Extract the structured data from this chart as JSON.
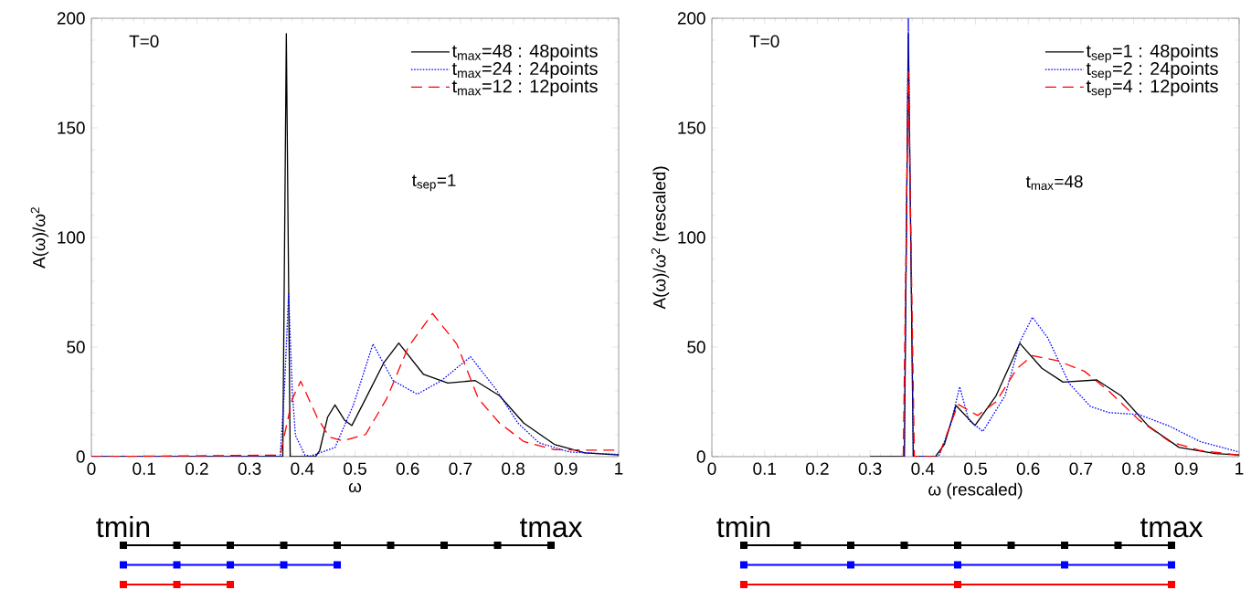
{
  "chart_data": [
    {
      "type": "line",
      "xlabel": "ω",
      "ylabel": "A(ω)/ω$^{2}$",
      "xlim": [
        0,
        1
      ],
      "ylim": [
        0,
        200
      ],
      "xticks": [
        0,
        0.1,
        0.2,
        0.3,
        0.4,
        0.5,
        0.6,
        0.7,
        0.8,
        0.9,
        1
      ],
      "yticks": [
        0,
        50,
        100,
        150,
        200
      ],
      "legend": "top right",
      "marker": "none",
      "annotations": [
        "T=0",
        "t$_{sep}$=1",
        "tmin",
        "tmax"
      ],
      "series": [
        {
          "name": "t$_{max}$=48 : 48points",
          "color": "#000000",
          "line_style": "solid",
          "x": [
            0,
            0.36,
            0.363,
            0.3697,
            0.377,
            0.425,
            0.433,
            0.448,
            0.462,
            0.48,
            0.494,
            0.52,
            0.555,
            0.583,
            0.63,
            0.676,
            0.728,
            0.774,
            0.82,
            0.878,
            0.936,
            1.0
          ],
          "values": [
            0,
            0,
            0,
            193,
            0,
            0,
            2.8,
            18,
            23.6,
            16.7,
            14.2,
            26.4,
            43,
            51.8,
            37.5,
            33.6,
            34.7,
            27.8,
            15.3,
            5.6,
            1.7,
            0.8
          ]
        },
        {
          "name": "t$_{max}$=24 : 24points",
          "color": "#0000ff",
          "line_style": "dotted",
          "x": [
            0,
            0.358,
            0.366,
            0.374,
            0.381,
            0.387,
            0.405,
            0.416,
            0.462,
            0.497,
            0.534,
            0.572,
            0.618,
            0.664,
            0.719,
            0.768,
            0.809,
            0.849,
            0.907,
            1.0
          ],
          "values": [
            0,
            0,
            30,
            74.3,
            30,
            9.7,
            0.7,
            0.3,
            4.2,
            23.6,
            51.4,
            34.7,
            28.5,
            34.7,
            45.6,
            30.5,
            15.3,
            6.3,
            2.1,
            1
          ]
        },
        {
          "name": "t$_{max}$=12 : 12points",
          "color": "#ff0000",
          "line_style": "dashed",
          "x": [
            0,
            0.358,
            0.381,
            0.397,
            0.428,
            0.451,
            0.477,
            0.52,
            0.56,
            0.601,
            0.647,
            0.693,
            0.734,
            0.774,
            0.82,
            0.878,
            0.936,
            1.0
          ],
          "values": [
            0,
            0.7,
            26.4,
            34.4,
            18,
            9,
            7.2,
            10.1,
            26.4,
            50,
            65.3,
            51.4,
            26.4,
            15.3,
            6.9,
            3.2,
            3,
            3
          ]
        }
      ]
    },
    {
      "type": "line",
      "xlabel": "ω (rescaled)",
      "ylabel": "A(ω)/ω$^{2}$ (rescaled)",
      "xlim": [
        0,
        1
      ],
      "ylim": [
        0,
        200
      ],
      "xticks": [
        0,
        0.1,
        0.2,
        0.3,
        0.4,
        0.5,
        0.6,
        0.7,
        0.8,
        0.9,
        1
      ],
      "yticks": [
        0,
        50,
        100,
        150,
        200
      ],
      "legend": "top right",
      "marker": "none",
      "annotations": [
        "T=0",
        "t$_{max}$=48",
        "tmin",
        "tmax"
      ],
      "series": [
        {
          "name": "t$_{sep}$=1 : 48points",
          "color": "#000000",
          "line_style": "solid",
          "x": [
            0.3,
            0.365,
            0.3726,
            0.382,
            0.424,
            0.441,
            0.463,
            0.499,
            0.539,
            0.584,
            0.626,
            0.666,
            0.73,
            0.776,
            0.828,
            0.886,
            0.955,
            1.0
          ],
          "values": [
            0,
            0,
            193,
            0,
            0,
            5.6,
            23.3,
            14.2,
            27.8,
            51.7,
            40.3,
            34,
            35,
            27.8,
            13.9,
            4.2,
            1.4,
            0.8
          ]
        },
        {
          "name": "t$_{sep}$=2 : 24points",
          "color": "#0000ff",
          "line_style": "dotted",
          "x": [
            0.365,
            0.3726,
            0.382,
            0.43,
            0.452,
            0.47,
            0.487,
            0.514,
            0.556,
            0.585,
            0.608,
            0.637,
            0.678,
            0.718,
            0.753,
            0.81,
            0.868,
            0.926,
            1.0
          ],
          "values": [
            0,
            200,
            0,
            0,
            13.9,
            31.9,
            16.7,
            11.5,
            27.8,
            52.8,
            63.6,
            54.2,
            33.3,
            22.9,
            20.1,
            19.2,
            13.9,
            6.9,
            2.1
          ]
        },
        {
          "name": "t$_{sep}$=4 : 12points",
          "color": "#ff0000",
          "line_style": "dashed",
          "x": [
            0.363,
            0.3726,
            0.384,
            0.43,
            0.447,
            0.467,
            0.504,
            0.539,
            0.579,
            0.608,
            0.655,
            0.707,
            0.753,
            0.81,
            0.868,
            0.926,
            1.0
          ],
          "values": [
            0,
            175.7,
            0,
            0,
            11.1,
            23.9,
            18.8,
            25,
            40.3,
            46.1,
            43.8,
            38.9,
            29.9,
            16.7,
            6.9,
            2.8,
            0.7
          ]
        }
      ]
    }
  ]
}
